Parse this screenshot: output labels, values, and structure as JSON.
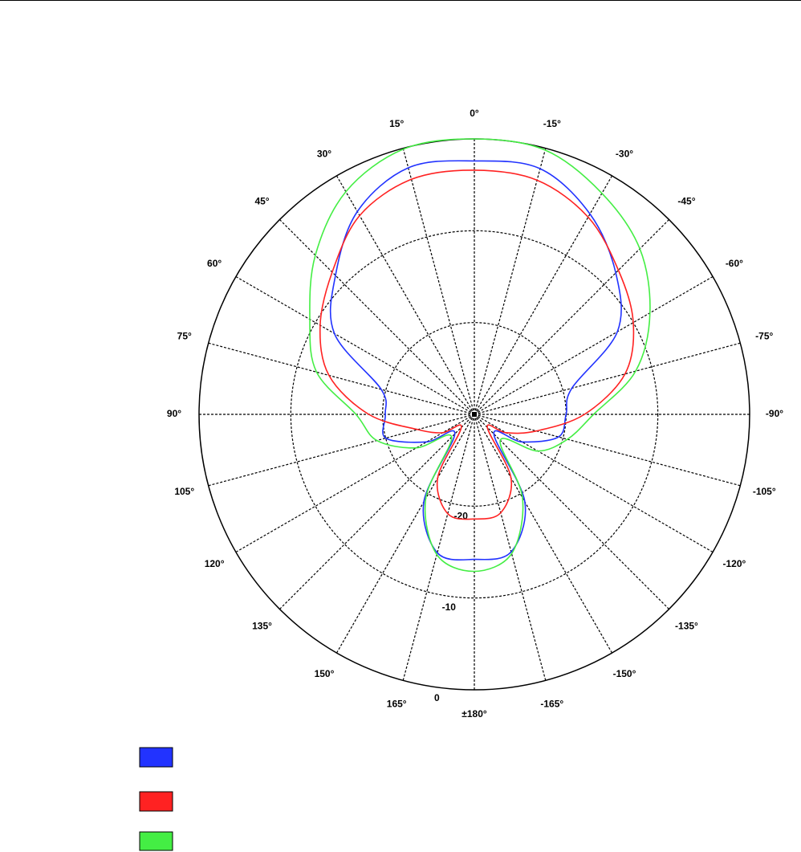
{
  "chart_data": {
    "type": "polar",
    "x": [
      -180,
      -165,
      -150,
      -135,
      -120,
      -105,
      -90,
      -75,
      -60,
      -45,
      -30,
      -15,
      0,
      15,
      30,
      45,
      60,
      75,
      90,
      105,
      120,
      135,
      150,
      165
    ],
    "series": [
      {
        "color": "#2233ff",
        "values": [
          -14.2,
          -14.5,
          -19,
          -27,
          -24,
          -20.5,
          -20,
          -19,
          -12,
          -8.2,
          -4.8,
          -2.3,
          -2.4,
          -2.2,
          -4.5,
          -8.6,
          -12.4,
          -19.5,
          -20.3,
          -20,
          -24,
          -27,
          -19,
          -14.4
        ]
      },
      {
        "color": "#ff2222",
        "values": [
          -18.6,
          -18.9,
          -22,
          -28,
          -26,
          -23,
          -18,
          -13,
          -10,
          -7.8,
          -5.2,
          -3.6,
          -3.4,
          -3.5,
          -5,
          -8.1,
          -10.6,
          -13.6,
          -18.5,
          -23.6,
          -26,
          -28,
          -22,
          -18.8
        ]
      },
      {
        "color": "#44ee44",
        "values": [
          -12.9,
          -14.3,
          -19.5,
          -26,
          -22,
          -19.5,
          -17,
          -11.8,
          -7.9,
          -4.5,
          -2.2,
          -0.2,
          0,
          -0.1,
          -2,
          -5.5,
          -9.3,
          -12.2,
          -17.1,
          -19,
          -22.7,
          -26.5,
          -19.4,
          -14.2
        ]
      }
    ],
    "xticks": [
      {
        "value": 0,
        "label": "0°"
      },
      {
        "value": 15,
        "label": "15°"
      },
      {
        "value": 30,
        "label": "30°"
      },
      {
        "value": 45,
        "label": "45°"
      },
      {
        "value": 60,
        "label": "60°"
      },
      {
        "value": 75,
        "label": "75°"
      },
      {
        "value": 90,
        "label": "90°"
      },
      {
        "value": 105,
        "label": "105°"
      },
      {
        "value": 120,
        "label": "120°"
      },
      {
        "value": 135,
        "label": "135°"
      },
      {
        "value": 150,
        "label": "150°"
      },
      {
        "value": 165,
        "label": "165°"
      },
      {
        "value": 180,
        "label": "±180°"
      },
      {
        "value": -165,
        "label": "-165°"
      },
      {
        "value": -150,
        "label": "-150°"
      },
      {
        "value": -135,
        "label": "-135°"
      },
      {
        "value": -120,
        "label": "-120°"
      },
      {
        "value": -105,
        "label": "-105°"
      },
      {
        "value": -90,
        "label": "-90°"
      },
      {
        "value": -75,
        "label": "-75°"
      },
      {
        "value": -60,
        "label": "-60°"
      },
      {
        "value": -45,
        "label": "-45°"
      },
      {
        "value": -30,
        "label": "-30°"
      },
      {
        "value": -15,
        "label": "-15°"
      }
    ],
    "ylim": [
      -30,
      0
    ],
    "yticks": [
      -20,
      -10,
      0
    ],
    "grid": true
  }
}
